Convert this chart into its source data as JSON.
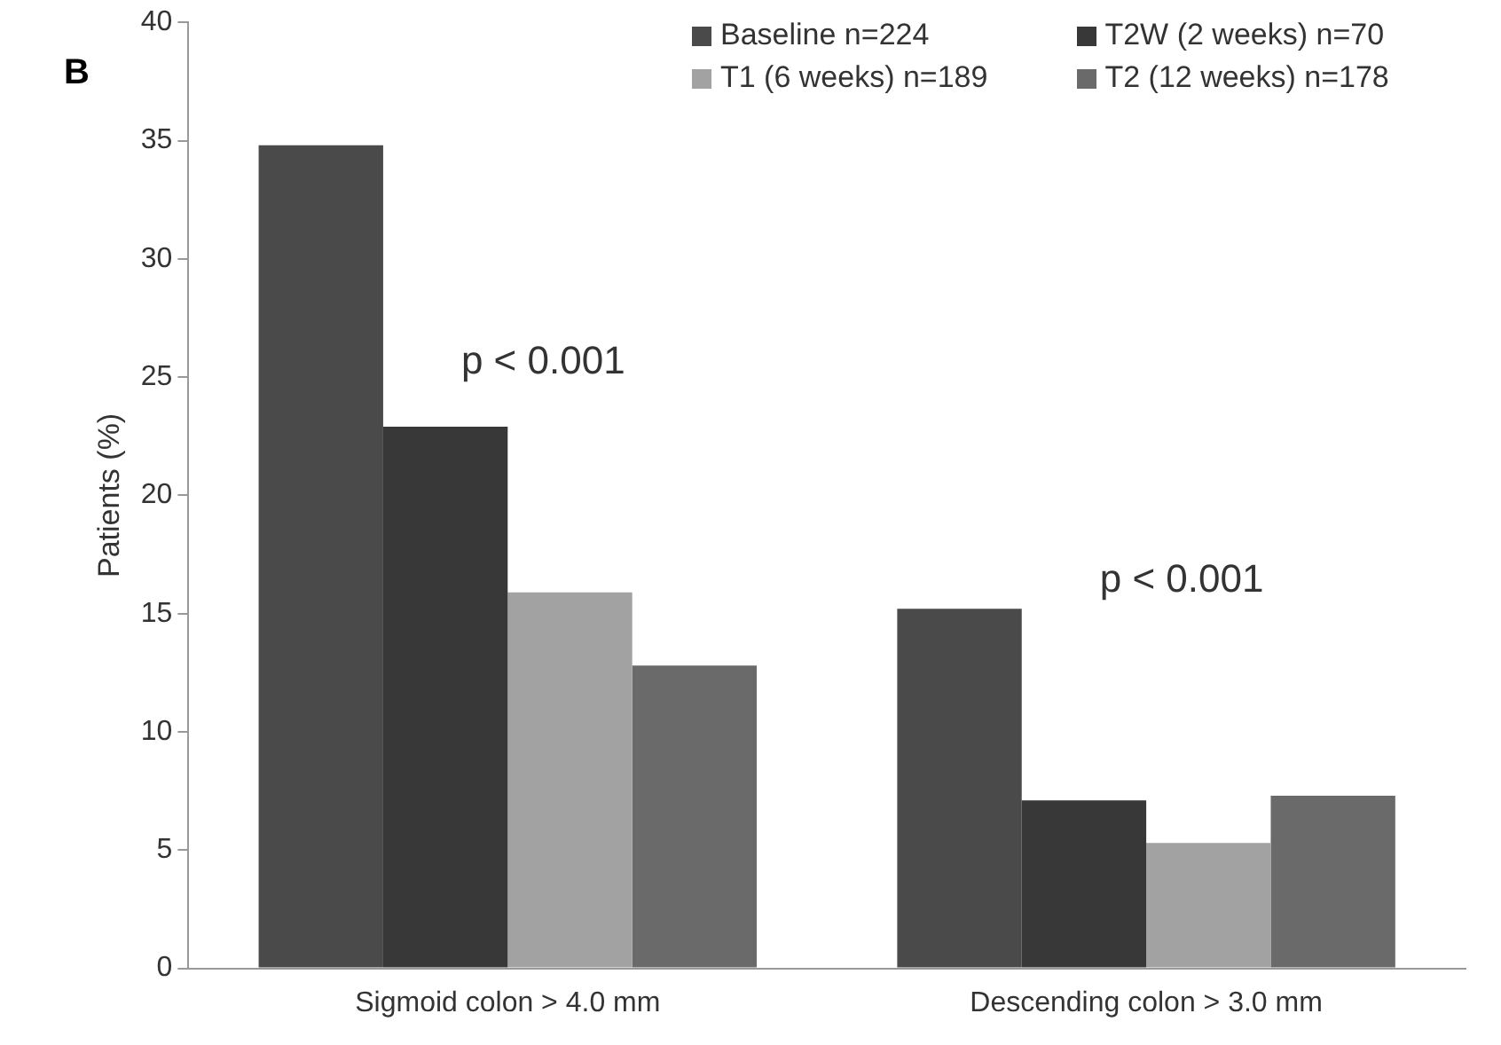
{
  "chart_data": {
    "type": "bar",
    "ylabel": "Patients (%)",
    "categories": [
      "Sigmoid colon > 4.0 mm",
      "Descending colon > 3.0 mm"
    ],
    "series": [
      {
        "name": "Baseline n=224",
        "color": "#4a4a4a",
        "values": [
          34.8,
          15.2
        ]
      },
      {
        "name": "T2W (2 weeks) n=70",
        "color": "#383838",
        "values": [
          22.9,
          7.1
        ]
      },
      {
        "name": "T1 (6 weeks) n=189",
        "color": "#a2a2a2",
        "values": [
          15.9,
          5.3
        ]
      },
      {
        "name": "T2 (12 weeks) n=178",
        "color": "#6a6a6a",
        "values": [
          12.8,
          7.3
        ]
      }
    ],
    "ylim": [
      0,
      40
    ],
    "yticks": [
      0,
      5,
      10,
      15,
      20,
      25,
      30,
      35,
      40
    ],
    "grid": false,
    "legend": "top right",
    "annotations": [
      "B",
      "p < 0.001",
      "p < 0.001"
    ]
  }
}
